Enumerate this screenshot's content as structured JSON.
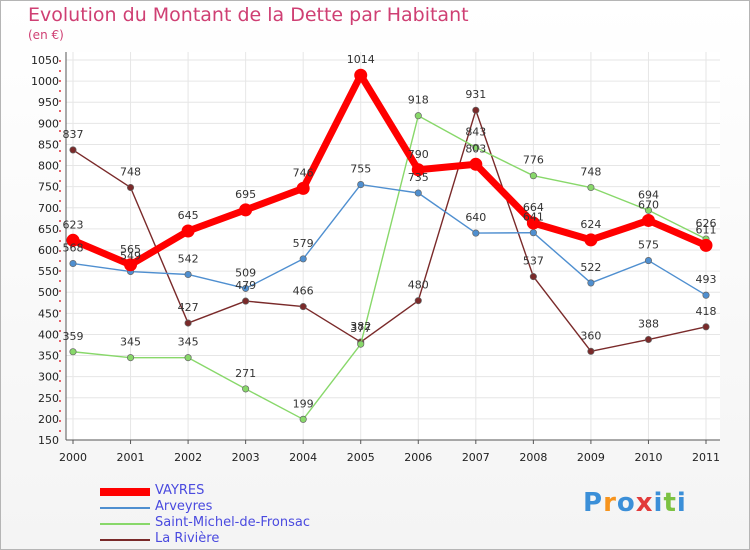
{
  "chart_data": {
    "type": "line",
    "title": "Evolution du Montant de la Dette par Habitant",
    "subtitle": "(en €)",
    "x": [
      "2000",
      "2001",
      "2002",
      "2003",
      "2004",
      "2005",
      "2006",
      "2007",
      "2008",
      "2009",
      "2010",
      "2011"
    ],
    "ylim": [
      150,
      1050
    ],
    "yticks": [
      150,
      200,
      250,
      300,
      350,
      400,
      450,
      500,
      550,
      600,
      650,
      700,
      750,
      800,
      850,
      900,
      950,
      1000,
      1050
    ],
    "grid": true,
    "legend_position": "bottom-left",
    "series": [
      {
        "name": "VAYRES",
        "color": "#ff0000",
        "values": [
          623,
          565,
          645,
          695,
          746,
          1014,
          790,
          803,
          664,
          624,
          670,
          611
        ],
        "labels": [
          "623",
          "565",
          "645",
          "695",
          "746",
          "1014",
          "790",
          "803",
          "664",
          "624",
          "670",
          "611"
        ]
      },
      {
        "name": "Arveyres",
        "color": "#4f8fd0",
        "values": [
          568,
          549,
          542,
          509,
          579,
          755,
          735,
          640,
          641,
          522,
          575,
          493
        ],
        "labels": [
          "568",
          "549",
          "542",
          "509",
          "579",
          "755",
          "735",
          "640",
          "641",
          "522",
          "575",
          "493"
        ]
      },
      {
        "name": "Saint-Michel-de-Fronsac",
        "color": "#88d86a",
        "values": [
          359,
          345,
          345,
          271,
          199,
          377,
          918,
          843,
          776,
          748,
          694,
          626
        ],
        "labels": [
          "359",
          "345",
          "345",
          "271",
          "199",
          "377",
          "918",
          "843",
          "776",
          "748",
          "694",
          "626"
        ]
      },
      {
        "name": "La Rivière",
        "color": "#7a2a2a",
        "values": [
          837,
          748,
          427,
          479,
          466,
          382,
          480,
          931,
          537,
          360,
          388,
          418
        ],
        "labels": [
          "837",
          "748",
          "427",
          "479",
          "466",
          "382",
          "480",
          "931",
          "537",
          "360",
          "388",
          "418"
        ]
      }
    ]
  },
  "brand": {
    "text": "Proxiti",
    "letters": [
      "P",
      "r",
      "o",
      "x",
      "i",
      "t",
      "i"
    ],
    "colors": [
      "#3b8fd8",
      "#f7941d",
      "#3b8fd8",
      "#e23b3b",
      "#3b8fd8",
      "#7cc242",
      "#3b8fd8"
    ]
  }
}
